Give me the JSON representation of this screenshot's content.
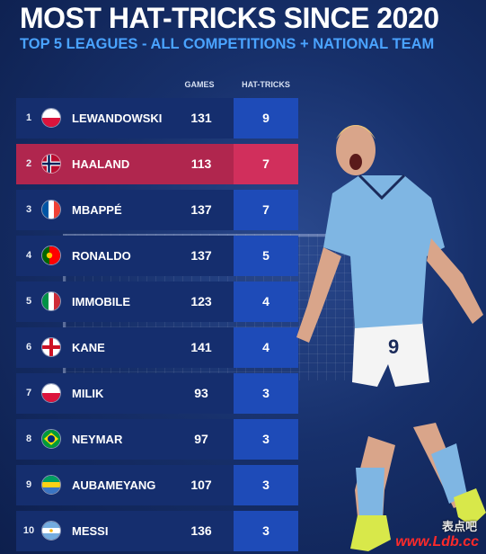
{
  "header": {
    "title": "MOST HAT-TRICKS SINCE 2020",
    "subtitle": "TOP 5 LEAGUES - ALL COMPETITIONS + NATIONAL TEAM"
  },
  "columns": {
    "games": "GAMES",
    "hat_tricks": "HAT-TRICKS"
  },
  "rows": [
    {
      "rank": "1",
      "flag": "poland-flag-icon",
      "name": "LEWANDOWSKI",
      "games": "131",
      "hat_tricks": "9"
    },
    {
      "rank": "2",
      "flag": "norway-flag-icon",
      "name": "HAALAND",
      "games": "113",
      "hat_tricks": "7"
    },
    {
      "rank": "3",
      "flag": "france-flag-icon",
      "name": "MBAPPÉ",
      "games": "137",
      "hat_tricks": "7"
    },
    {
      "rank": "4",
      "flag": "portugal-flag-icon",
      "name": "RONALDO",
      "games": "137",
      "hat_tricks": "5"
    },
    {
      "rank": "5",
      "flag": "italy-flag-icon",
      "name": "IMMOBILE",
      "games": "123",
      "hat_tricks": "4"
    },
    {
      "rank": "6",
      "flag": "england-flag-icon",
      "name": "KANE",
      "games": "141",
      "hat_tricks": "4"
    },
    {
      "rank": "7",
      "flag": "poland-flag-icon",
      "name": "MILIK",
      "games": "93",
      "hat_tricks": "3"
    },
    {
      "rank": "8",
      "flag": "brazil-flag-icon",
      "name": "NEYMAR",
      "games": "97",
      "hat_tricks": "3"
    },
    {
      "rank": "9",
      "flag": "gabon-flag-icon",
      "name": "AUBAMEYANG",
      "games": "107",
      "hat_tricks": "3"
    },
    {
      "rank": "10",
      "flag": "argentina-flag-icon",
      "name": "MESSI",
      "games": "136",
      "hat_tricks": "3"
    }
  ],
  "highlight_rank": "2",
  "colors": {
    "row": "#152e6e",
    "row_highlight": "#b0264e",
    "hat_cell": "#1e4bb8",
    "hat_cell_highlight": "#d12f5c",
    "subtitle": "#4aa3ff"
  },
  "player": {
    "shirt_number": "9"
  },
  "watermark": {
    "cn": "表点吧",
    "url": "www.Ldb.cc"
  }
}
